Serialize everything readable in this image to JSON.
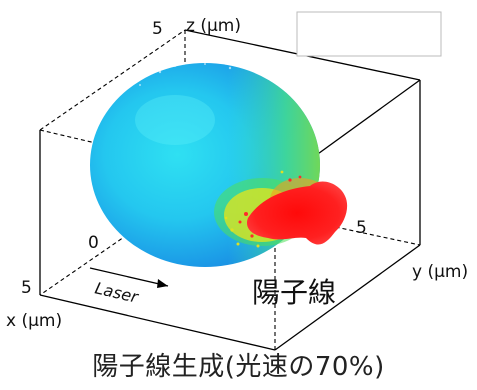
{
  "axes": {
    "z_label": "z (μm)",
    "z_max_tick": "5",
    "y_label": "y (μm)",
    "y_tick": "5",
    "x_label": "x (μm)",
    "x_tick": "5",
    "origin_tick": "0"
  },
  "annotations": {
    "laser_label": "Laser",
    "proton_beam_label": "陽子線"
  },
  "caption": "陽子線生成(光速の70%)",
  "colors": {
    "sphere_center": "#29d6f0",
    "sphere_edge": "#1b8fe6",
    "sphere_right": "#3bd98a",
    "beam_red": "#ff1a1a",
    "beam_yellow": "#e6e619",
    "frame": "#000000"
  }
}
